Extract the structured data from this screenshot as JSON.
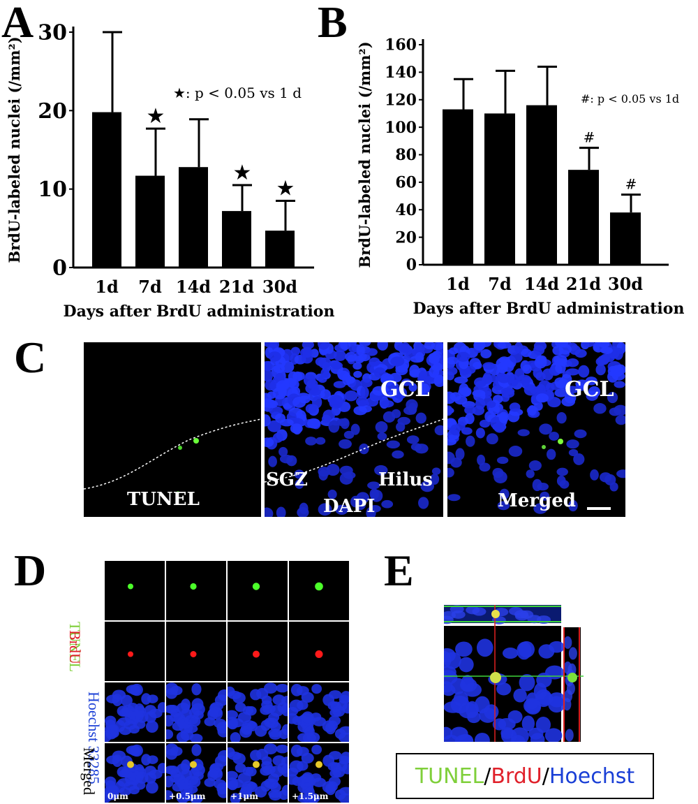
{
  "panels": {
    "a": "A",
    "b": "B",
    "c": "C",
    "d": "D",
    "e": "E"
  },
  "chart_data": [
    {
      "type": "bar",
      "ylabel": "BrdU-labeled nuclei (/mm²)",
      "xlabel": "Days after BrdU administration",
      "categories": [
        "1d",
        "7d",
        "14d",
        "21d",
        "30d"
      ],
      "values": [
        19.8,
        11.7,
        12.8,
        7.2,
        4.7
      ],
      "errors": [
        10.2,
        6.0,
        6.1,
        3.3,
        3.8
      ],
      "significant": [
        false,
        true,
        false,
        true,
        true
      ],
      "marker": "★",
      "annotation": "★: p < 0.05 vs 1 d",
      "ylim": [
        0,
        30
      ],
      "yticks": [
        0,
        10,
        20,
        30
      ],
      "color": "#000000"
    },
    {
      "type": "bar",
      "ylabel": "BrdU-labeled nuclei (/mm²)",
      "xlabel": "Days after BrdU administration",
      "categories": [
        "1d",
        "7d",
        "14d",
        "21d",
        "30d"
      ],
      "values": [
        113,
        110,
        116,
        69,
        38
      ],
      "errors": [
        22,
        31,
        28,
        16,
        13
      ],
      "significant": [
        false,
        false,
        false,
        true,
        true
      ],
      "marker": "#",
      "annotation": "#: p < 0.05 vs 1d",
      "ylim": [
        0,
        160
      ],
      "yticks": [
        0,
        20,
        40,
        60,
        80,
        100,
        120,
        140,
        160
      ],
      "color": "#000000"
    }
  ],
  "panel_c": {
    "images": [
      {
        "label": "TUNEL",
        "stain": "green"
      },
      {
        "label": "DAPI",
        "stain": "blue"
      },
      {
        "label": "Merged",
        "stain": "merged"
      }
    ],
    "region_labels": [
      "GCL",
      "SGZ",
      "Hilus"
    ]
  },
  "panel_d": {
    "rows": [
      {
        "label": "TUNEL",
        "color": "#7fcf3a"
      },
      {
        "label": "BrdU",
        "color": "#e0202a"
      },
      {
        "label": "Hoechst 33285",
        "color": "#1a3fd6"
      },
      {
        "label": "Merged",
        "color": "#000000"
      }
    ],
    "depths": [
      "0μm",
      "+0.5μm",
      "+1μm",
      "+1.5μm"
    ]
  },
  "panel_e": {
    "legend": [
      {
        "text": "TUNEL",
        "color": "#7fcf3a"
      },
      {
        "text": "/",
        "color": "#000000"
      },
      {
        "text": "BrdU",
        "color": "#e0202a"
      },
      {
        "text": "/",
        "color": "#000000"
      },
      {
        "text": "Hoechst",
        "color": "#1a3fd6"
      }
    ]
  }
}
